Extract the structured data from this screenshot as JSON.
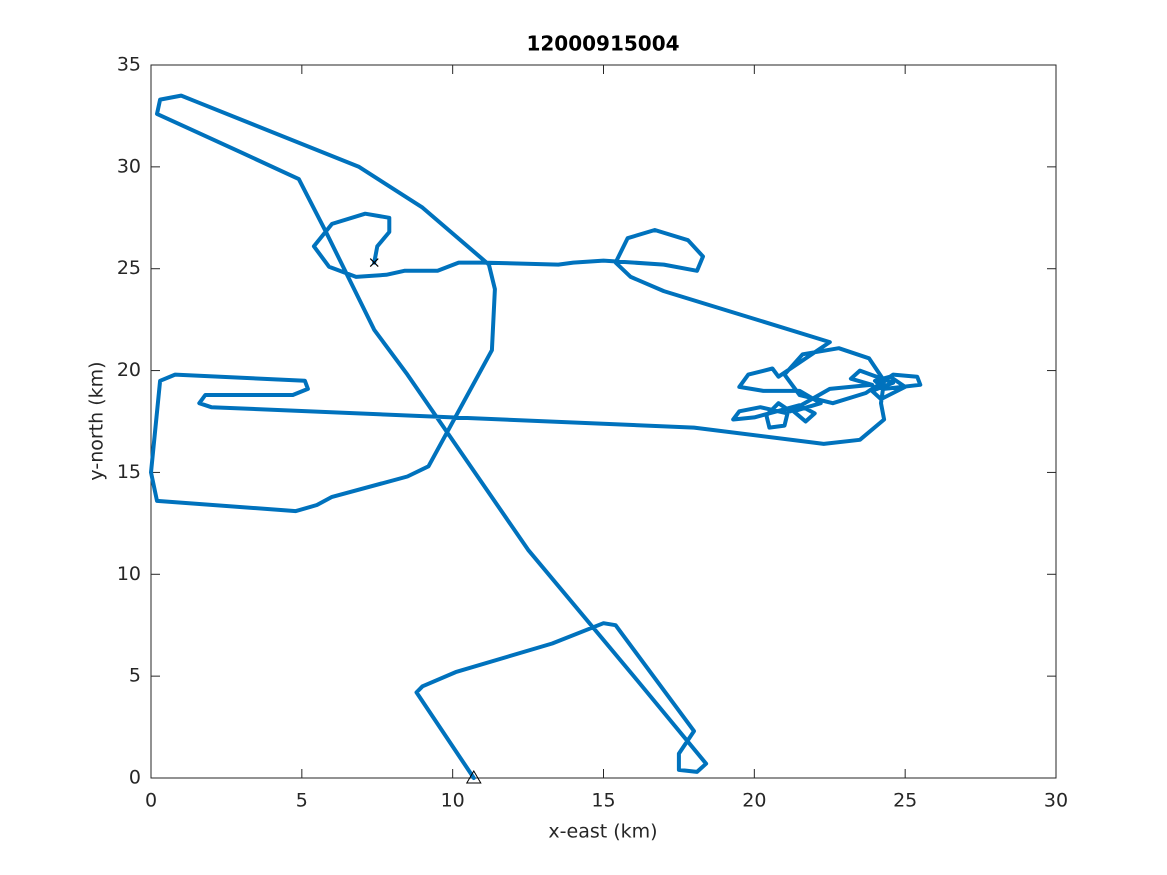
{
  "chart_data": {
    "type": "line",
    "title": "12000915004",
    "xlabel": "x-east (km)",
    "ylabel": "y-north (km)",
    "xlim": [
      0,
      30
    ],
    "ylim": [
      0,
      35
    ],
    "xticks": [
      0,
      5,
      10,
      15,
      20,
      25,
      30
    ],
    "yticks": [
      0,
      5,
      10,
      15,
      20,
      25,
      30,
      35
    ],
    "series": [
      {
        "color": "#0072bd",
        "x": [
          10.7,
          8.8,
          9.0,
          10.1,
          13.3,
          15.0,
          15.4,
          18.0,
          17.5,
          17.5,
          18.1,
          18.4,
          16.0,
          12.5,
          10.5,
          8.5,
          7.4,
          5.8,
          4.9,
          3.0,
          0.2,
          0.3,
          1.0,
          1.5,
          6.9,
          9.0,
          11.2,
          11.4,
          11.3,
          9.2,
          8.5,
          6.0,
          5.5,
          4.8,
          0.2,
          0.0,
          0.3,
          0.8,
          5.1,
          5.2,
          4.7,
          1.8,
          1.6,
          2.0,
          18.0,
          22.3,
          23.5,
          24.3,
          24.2,
          24.3,
          23.8,
          22.8,
          21.6,
          21.0,
          21.5,
          22.6,
          23.7,
          24.6,
          25.4,
          25.5,
          24.3,
          24.0,
          24.5,
          25.0,
          24.2,
          23.9,
          24.6,
          23.5,
          23.2,
          23.9,
          22.5,
          21.2,
          20.8,
          20.4,
          20.5,
          21.0,
          21.1,
          20.2,
          19.5,
          19.3,
          20.0,
          21.5,
          22.0,
          21.7,
          21.3,
          22.2,
          21.5,
          20.3,
          19.5,
          19.8,
          20.6,
          20.8,
          22.5,
          17.0,
          15.9,
          15.4,
          15.8,
          16.7,
          17.8,
          18.3,
          18.1,
          17.0,
          15.0,
          14.0,
          13.5,
          11.0,
          10.2,
          9.5,
          8.4,
          7.8,
          6.8,
          5.9,
          5.4,
          6.0,
          7.1,
          7.9,
          7.9,
          7.5,
          7.4
        ],
        "y": [
          0.0,
          4.2,
          4.5,
          5.2,
          6.6,
          7.6,
          7.5,
          2.3,
          1.2,
          0.4,
          0.3,
          0.7,
          5.0,
          11.2,
          15.5,
          19.8,
          22.0,
          26.8,
          29.4,
          30.7,
          32.6,
          33.3,
          33.5,
          33.2,
          30.0,
          28.0,
          25.2,
          24.0,
          21.0,
          15.3,
          14.8,
          13.8,
          13.4,
          13.1,
          13.6,
          15.0,
          19.5,
          19.8,
          19.5,
          19.1,
          18.8,
          18.8,
          18.4,
          18.2,
          17.2,
          16.4,
          16.6,
          17.6,
          18.4,
          19.5,
          20.6,
          21.1,
          20.8,
          19.8,
          18.8,
          18.4,
          18.9,
          19.8,
          19.7,
          19.3,
          19.1,
          19.5,
          19.7,
          19.2,
          18.6,
          19.0,
          19.4,
          20.0,
          19.6,
          19.3,
          19.1,
          18.0,
          18.4,
          17.8,
          17.2,
          17.3,
          17.9,
          18.2,
          18.0,
          17.6,
          17.7,
          18.3,
          17.9,
          17.5,
          18.0,
          18.4,
          19.0,
          19.0,
          19.2,
          19.8,
          20.1,
          19.7,
          21.4,
          23.9,
          24.6,
          25.3,
          26.5,
          26.9,
          26.4,
          25.6,
          24.9,
          25.2,
          25.4,
          25.3,
          25.2,
          25.3,
          25.3,
          24.9,
          24.9,
          24.7,
          24.6,
          25.1,
          26.1,
          27.2,
          27.7,
          27.5,
          26.8,
          26.1,
          25.3
        ]
      },
      {
        "color": "#000000",
        "marker": "triangle",
        "x": [
          10.7
        ],
        "y": [
          0.0
        ]
      },
      {
        "color": "#000000",
        "marker": "cross",
        "x": [
          7.4
        ],
        "y": [
          25.3
        ]
      }
    ]
  }
}
